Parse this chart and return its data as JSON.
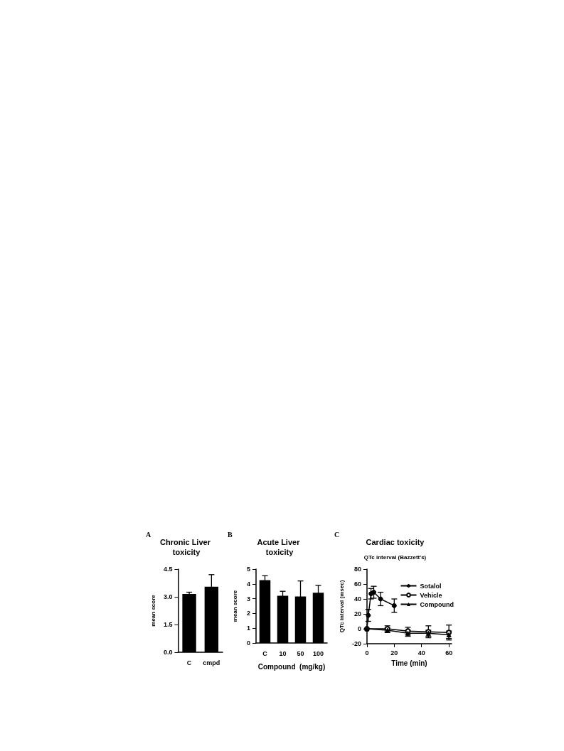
{
  "chart_data": [
    {
      "type": "bar",
      "title": "Chronic Liver toxicity",
      "annotations": [
        "A"
      ],
      "ylabel": "mean score",
      "categories": [
        "C",
        "cmpd"
      ],
      "values": [
        3.15,
        3.55
      ],
      "errors": [
        0.1,
        0.65
      ],
      "color": "#000000",
      "ylim": [
        0,
        4.5
      ],
      "yticks": [
        {
          "value": 0,
          "label": "0.0"
        },
        {
          "value": 1.5,
          "label": "1.5"
        },
        {
          "value": 3,
          "label": "3.0"
        },
        {
          "value": 4.5,
          "label": "4.5"
        }
      ],
      "grid": false
    },
    {
      "type": "bar",
      "title": "Acute Liver toxicity",
      "annotations": [
        "B"
      ],
      "ylabel": "mean score",
      "xlabel": "Compound  (mg/kg)",
      "categories": [
        "C",
        "10",
        "50",
        "100"
      ],
      "values": [
        4.25,
        3.2,
        3.15,
        3.4
      ],
      "errors": [
        0.3,
        0.3,
        1.05,
        0.5
      ],
      "color": "#000000",
      "ylim": [
        0,
        5
      ],
      "yticks": [
        0,
        1,
        2,
        3,
        4,
        5
      ],
      "grid": false
    },
    {
      "type": "line",
      "title": "Cardiac toxicity",
      "subtitle": "QTc interval (Bazzett's)",
      "annotations": [
        "C"
      ],
      "xlabel": "Time (min)",
      "ylabel": "QTc interval (msec)",
      "xlim": [
        0,
        62
      ],
      "xticks": [
        0,
        20,
        40,
        60
      ],
      "ylim": [
        -20,
        80
      ],
      "yticks": [
        -20,
        0,
        20,
        40,
        60,
        80
      ],
      "grid": false,
      "legend": "top right",
      "series": [
        {
          "name": "Sotalol",
          "color": "#000000",
          "marker": "circle",
          "x": [
            0,
            1,
            3,
            5,
            10,
            20
          ],
          "values": [
            0,
            18,
            47,
            49,
            40,
            31
          ],
          "errors": [
            0,
            8,
            7,
            8,
            9,
            9
          ]
        },
        {
          "name": "Vehicle",
          "color": "#000000",
          "marker": "emptyCircle",
          "x": [
            0,
            15,
            30,
            45,
            60
          ],
          "values": [
            0,
            0,
            -3,
            -4,
            -5
          ],
          "errors": [
            0,
            4,
            5,
            8,
            10
          ]
        },
        {
          "name": "Compound",
          "color": "#000000",
          "marker": "triangle",
          "x": [
            0,
            15,
            30,
            45,
            60
          ],
          "values": [
            0,
            -2,
            -6,
            -6,
            -8
          ],
          "errors": [
            0,
            3,
            4,
            4,
            5
          ]
        }
      ]
    }
  ]
}
